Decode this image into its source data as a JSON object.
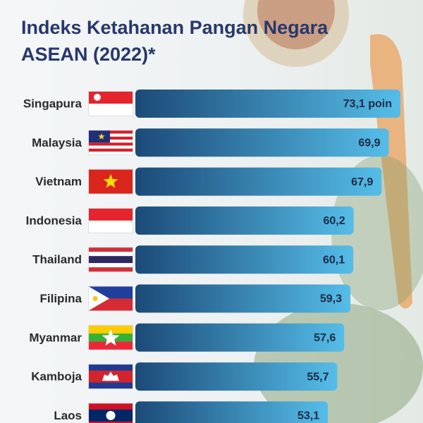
{
  "chart_data": {
    "type": "bar",
    "orientation": "horizontal",
    "title": "Indeks Ketahanan Pangan Negara ASEAN (2022)*",
    "categories": [
      "Singapura",
      "Malaysia",
      "Vietnam",
      "Indonesia",
      "Thailand",
      "Filipina",
      "Myanmar",
      "Kamboja",
      "Laos"
    ],
    "values": [
      73.1,
      69.9,
      67.9,
      60.2,
      60.1,
      59.3,
      57.6,
      55.7,
      53.1
    ],
    "value_labels": [
      "73,1 poin",
      "69,9",
      "67,9",
      "60,2",
      "60,1",
      "59,3",
      "57,6",
      "55,7",
      "53,1"
    ]
  }
}
